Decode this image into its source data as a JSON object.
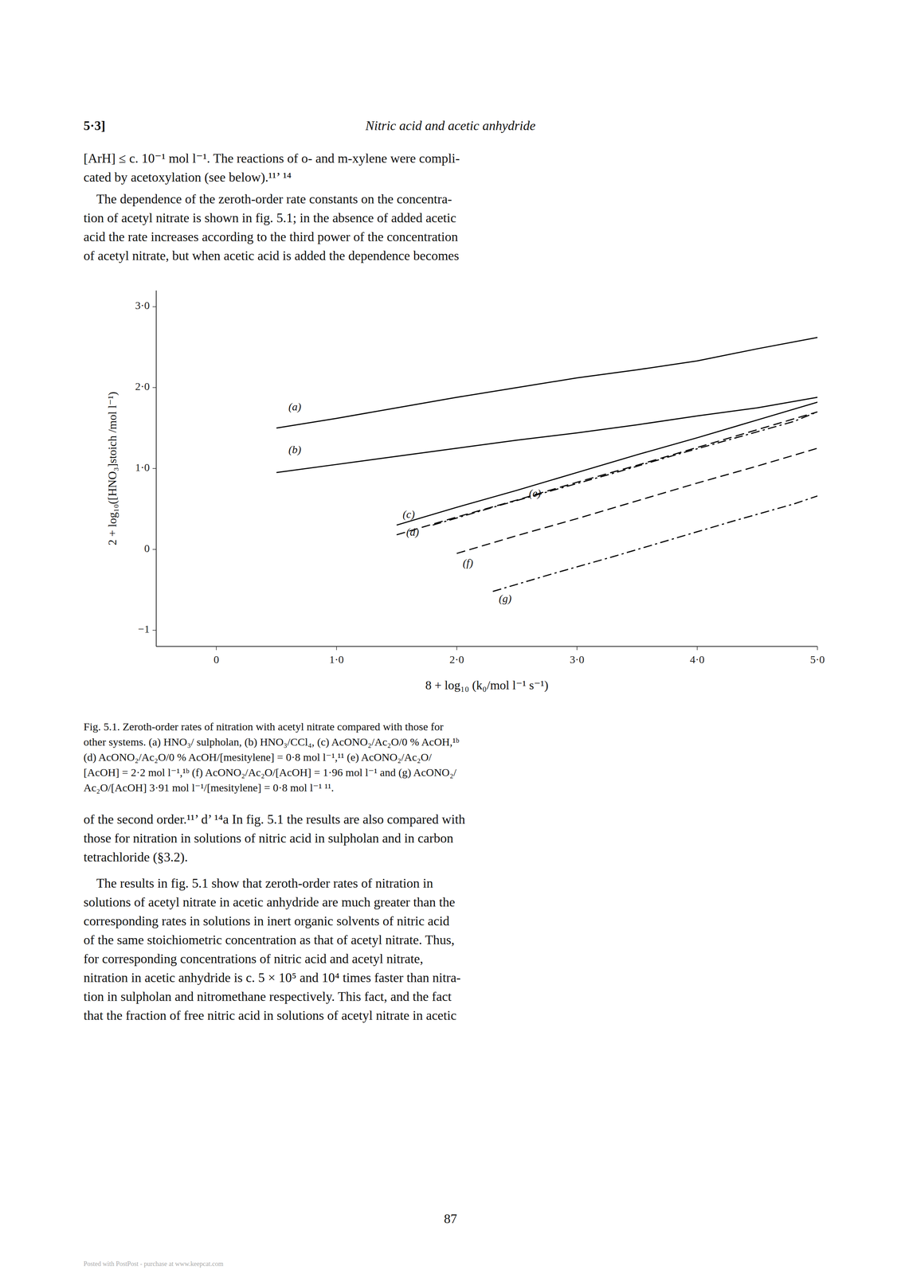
{
  "section": "5·3]",
  "section_title": "Nitric acid and acetic anhydride",
  "body_text_1": [
    "[ArH] ≤ c. 10⁻¹ mol l⁻¹. The reactions of o- and m-xylene were compli-",
    "cated by acetoxylation (see below).¹¹’ ¹⁴"
  ],
  "body_text_2": [
    "    The dependence of the zeroth-order rate constants on the concentra-",
    "tion of acetyl nitrate is shown in fig. 5.1; in the absence of added acetic",
    "acid the rate increases according to the third power of the concentration",
    "of acetyl nitrate, but when acetic acid is added the dependence becomes"
  ],
  "chart_data": {
    "type": "line",
    "x_label": "8 + log₁₀ (k₀/mol l⁻¹ s⁻¹)",
    "y_label": "2 + log₁₀([HNO₃]stoich /mol l⁻¹)",
    "xlim": [
      -0.5,
      5.0
    ],
    "ylim": [
      -1.2,
      3.2
    ],
    "xticks": [
      0,
      {
        "value": 1.0,
        "label": "1·0"
      },
      {
        "value": 2.0,
        "label": "2·0"
      },
      {
        "value": 3.0,
        "label": "3·0"
      },
      {
        "value": 4.0,
        "label": "4·0"
      },
      {
        "value": 5.0,
        "label": "5·0"
      }
    ],
    "yticks": [
      {
        "value": -1,
        "label": "−1"
      },
      0,
      {
        "value": 1.0,
        "label": "1·0"
      },
      {
        "value": 2.0,
        "label": "2·0"
      },
      {
        "value": 3.0,
        "label": "3·0"
      }
    ],
    "grid": false,
    "series": [
      {
        "color": "#000000",
        "line_style": "solid",
        "x": [
          0.5,
          1.0,
          1.5,
          2.0,
          2.5,
          3.0,
          3.5,
          4.0,
          4.5,
          5.0
        ],
        "values": [
          1.5,
          1.62,
          1.75,
          1.88,
          2.0,
          2.12,
          2.22,
          2.33,
          2.48,
          2.62
        ]
      },
      {
        "color": "#000000",
        "line_style": "solid",
        "x": [
          0.5,
          1.0,
          1.5,
          2.0,
          2.5,
          3.0,
          3.5,
          4.0,
          4.5,
          5.0
        ],
        "values": [
          0.95,
          1.05,
          1.15,
          1.25,
          1.35,
          1.44,
          1.54,
          1.65,
          1.75,
          1.88
        ]
      },
      {
        "color": "#000000",
        "line_style": "solid",
        "x": [
          1.5,
          2.0,
          2.5,
          3.0,
          3.5,
          4.0,
          4.5,
          5.0
        ],
        "values": [
          0.3,
          0.52,
          0.73,
          0.95,
          1.17,
          1.38,
          1.6,
          1.82
        ]
      },
      {
        "color": "#000000",
        "line_style": "dashed",
        "x": [
          1.5,
          2.0,
          2.5,
          3.0,
          3.5,
          4.0,
          4.5,
          5.0
        ],
        "values": [
          0.18,
          0.4,
          0.61,
          0.83,
          1.04,
          1.26,
          1.48,
          1.7
        ]
      },
      {
        "color": "#000000",
        "line_style": "dashdot",
        "x": [
          1.8,
          2.3,
          2.8,
          3.3,
          3.8,
          4.3,
          4.8,
          5.0
        ],
        "values": [
          0.3,
          0.52,
          0.73,
          0.94,
          1.16,
          1.37,
          1.58,
          1.7
        ]
      },
      {
        "color": "#000000",
        "line_style": "dashed",
        "x": [
          2.0,
          2.5,
          3.0,
          3.5,
          4.0,
          4.5,
          5.0
        ],
        "values": [
          -0.05,
          0.17,
          0.38,
          0.6,
          0.82,
          1.03,
          1.25
        ]
      },
      {
        "color": "#000000",
        "line_style": "dashdot",
        "x": [
          2.3,
          2.8,
          3.3,
          3.8,
          4.3,
          4.8,
          5.0
        ],
        "values": [
          -0.52,
          -0.3,
          -0.09,
          0.13,
          0.35,
          0.56,
          0.66
        ]
      }
    ],
    "annotations": [
      {
        "text": "(a)",
        "x": 0.6,
        "y": 1.75
      },
      {
        "text": "(b)",
        "x": 0.6,
        "y": 1.22
      },
      {
        "text": "(c)",
        "x": 1.55,
        "y": 0.42
      },
      {
        "text": "(d)",
        "x": 1.58,
        "y": 0.2
      },
      {
        "text": "(e)",
        "x": 2.6,
        "y": 0.68
      },
      {
        "text": "(f)",
        "x": 2.05,
        "y": -0.18
      },
      {
        "text": "(g)",
        "x": 2.35,
        "y": -0.62
      }
    ]
  },
  "caption": [
    "Fig. 5.1. Zeroth-order rates of nitration with acetyl nitrate compared with those for",
    "other systems. (a) HNO₃/ sulpholan, (b) HNO₃/CCl₄, (c) AcONO₂/Ac₂O/0 % AcOH,¹ᵇ",
    "(d) AcONO₂/Ac₂O/0 % AcOH/[mesitylene] = 0·8 mol l⁻¹,¹¹ (e) AcONO₂/Ac₂O/",
    "[AcOH] = 2·2 mol l⁻¹,¹ᵇ (f) AcONO₂/Ac₂O/[AcOH] = 1·96 mol l⁻¹ and (g) AcONO₂/",
    "Ac₂O/[AcOH] 3·91 mol l⁻¹/[mesitylene] = 0·8 mol l⁻¹ ¹¹."
  ],
  "body_text_3": [
    "of the second order.¹¹’ d’ ¹⁴a In fig. 5.1 the results are also compared with",
    "those for nitration in solutions of nitric acid in sulpholan and in carbon",
    "tetrachloride (§3.2)."
  ],
  "body_text_4": [
    "    The results in fig. 5.1 show that zeroth-order rates of nitration in",
    "solutions of acetyl nitrate in acetic anhydride are much greater than the",
    "corresponding rates in solutions in inert organic solvents of nitric acid",
    "of the same stoichiometric concentration as that of acetyl nitrate. Thus,",
    "for corresponding concentrations of nitric acid and acetyl nitrate,",
    "nitration in acetic anhydride is c. 5 × 10⁵ and 10⁴ times faster than nitra-",
    "tion in sulpholan and nitromethane respectively. This fact, and the fact",
    "that the fraction of free nitric acid in solutions of acetyl nitrate in acetic"
  ],
  "page_number": "87",
  "footer": "Posted with PostPost - purchase at www.keepcat.com"
}
